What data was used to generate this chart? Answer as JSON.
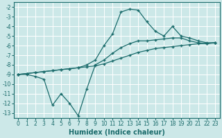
{
  "xlabel": "Humidex (Indice chaleur)",
  "bg_color": "#cce8e8",
  "line_color": "#1a6b6b",
  "grid_color": "#ffffff",
  "xlim": [
    -0.5,
    23.5
  ],
  "ylim": [
    -13.5,
    -1.5
  ],
  "xticks": [
    0,
    1,
    2,
    3,
    4,
    5,
    6,
    7,
    8,
    9,
    10,
    11,
    12,
    13,
    14,
    15,
    16,
    17,
    18,
    19,
    20,
    21,
    22,
    23
  ],
  "yticks": [
    -2,
    -3,
    -4,
    -5,
    -6,
    -7,
    -8,
    -9,
    -10,
    -11,
    -12,
    -13
  ],
  "line_volatile_x": [
    0,
    1,
    2,
    3,
    4,
    5,
    6,
    7,
    8,
    9,
    10,
    11,
    12,
    13,
    14,
    15,
    16,
    17,
    18,
    19,
    20,
    21,
    22,
    23
  ],
  "line_volatile_y": [
    -9.0,
    -9.0,
    -9.2,
    -9.5,
    -12.2,
    -11.0,
    -12.0,
    -13.3,
    -10.5,
    -8.0,
    -7.5,
    -6.8,
    -6.2,
    -5.8,
    -5.5,
    -5.5,
    -5.4,
    -5.3,
    -5.2,
    -5.2,
    -5.5,
    -5.7,
    -5.8,
    -5.7
  ],
  "line_straight_x": [
    0,
    1,
    2,
    3,
    4,
    5,
    6,
    7,
    8,
    9,
    10,
    11,
    12,
    13,
    14,
    15,
    16,
    17,
    18,
    19,
    20,
    21,
    22,
    23
  ],
  "line_straight_y": [
    -9.0,
    -8.9,
    -8.8,
    -8.7,
    -8.6,
    -8.5,
    -8.4,
    -8.3,
    -8.2,
    -8.1,
    -7.9,
    -7.6,
    -7.3,
    -7.0,
    -6.7,
    -6.5,
    -6.3,
    -6.2,
    -6.1,
    -6.0,
    -5.9,
    -5.8,
    -5.75,
    -5.7
  ],
  "line_peak_x": [
    0,
    1,
    2,
    3,
    4,
    5,
    6,
    7,
    8,
    9,
    10,
    11,
    12,
    13,
    14,
    15,
    16,
    17,
    18,
    19,
    20,
    21,
    22,
    23
  ],
  "line_peak_y": [
    -9.0,
    -8.9,
    -8.8,
    -8.7,
    -8.6,
    -8.5,
    -8.4,
    -8.3,
    -8.0,
    -7.5,
    -6.0,
    -4.8,
    -2.5,
    -2.2,
    -2.3,
    -3.5,
    -4.5,
    -5.0,
    -4.0,
    -5.0,
    -5.2,
    -5.5,
    -5.7,
    -5.7
  ],
  "marker": "+",
  "markersize": 3,
  "linewidth": 0.9,
  "tick_fontsize": 5.5,
  "xlabel_fontsize": 7
}
